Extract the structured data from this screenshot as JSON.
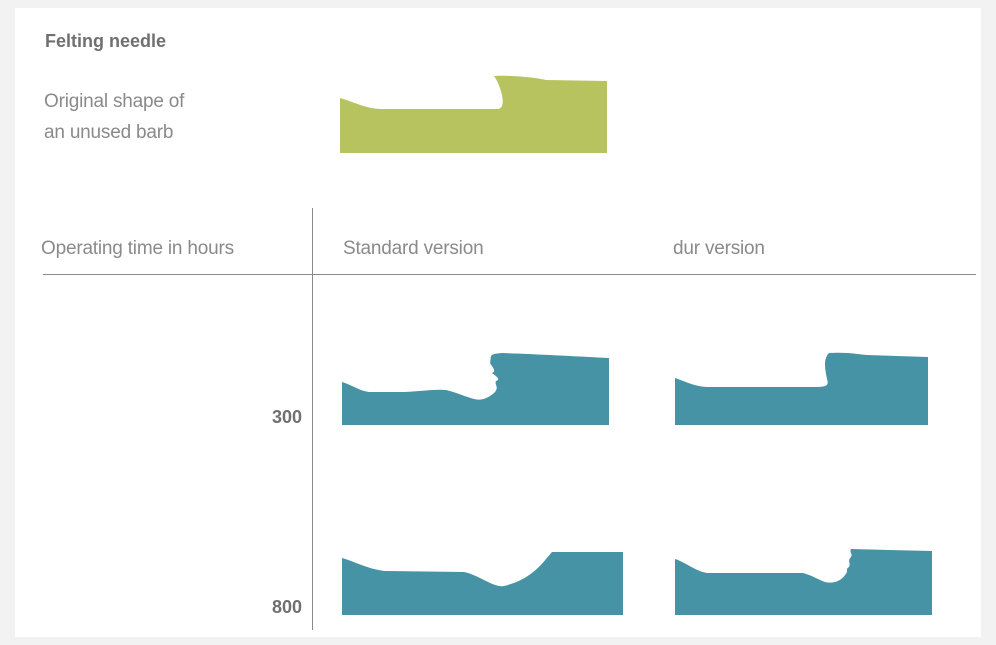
{
  "title": "Felting needle",
  "original_label_line1": "Original shape of",
  "original_label_line2": "an unused barb",
  "columns": {
    "operating_time": "Operating time in hours",
    "standard": "Standard version",
    "dur": "dur version"
  },
  "rows": [
    {
      "hours": "300"
    },
    {
      "hours": "800"
    }
  ],
  "colors": {
    "original_barb": "#b7c35f",
    "worn_barb": "#4593a4",
    "text": "#707070",
    "lines": "#8a8a8a"
  }
}
